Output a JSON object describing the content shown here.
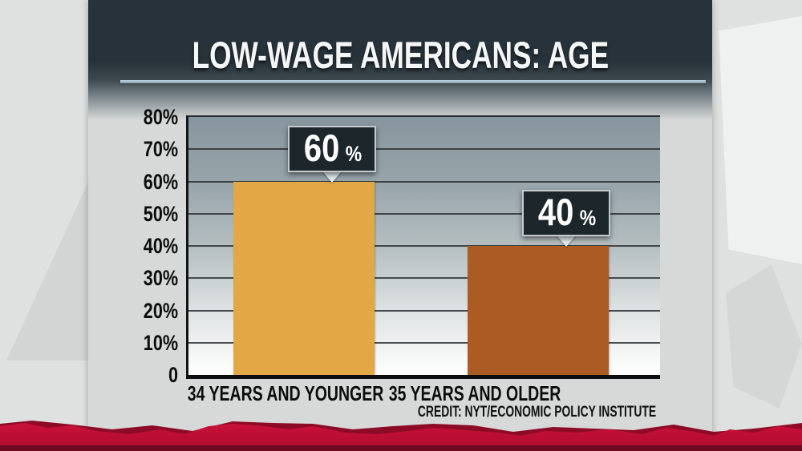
{
  "title": "LOW-WAGE AMERICANS: AGE",
  "credit": "CREDIT: NYT/ECONOMIC POLICY INSTITUTE",
  "colors": {
    "header_bg": "#27323a",
    "title_rule": "#9db6c4",
    "bar_younger": "#e1a845",
    "bar_older": "#ac5b25",
    "callout_bg": "#1c262b",
    "callout_border": "#c6cbcd",
    "red_band": "#c30d33",
    "red_band_dark": "#6d0a20"
  },
  "chart_data": {
    "type": "bar",
    "title": "LOW-WAGE AMERICANS: AGE",
    "categories": [
      "34 YEARS AND YOUNGER",
      "35 YEARS AND OLDER"
    ],
    "values": [
      60,
      40
    ],
    "value_labels": [
      "60%",
      "40%"
    ],
    "bar_colors": [
      "#e1a845",
      "#ac5b25"
    ],
    "xlabel": "",
    "ylabel": "",
    "ylim": [
      0,
      80
    ],
    "ytick_labels": [
      "80%",
      "70%",
      "60%",
      "50%",
      "40%",
      "30%",
      "20%",
      "10%",
      "0"
    ],
    "grid": true,
    "legend": false,
    "credit": "CREDIT: NYT/ECONOMIC POLICY INSTITUTE"
  }
}
